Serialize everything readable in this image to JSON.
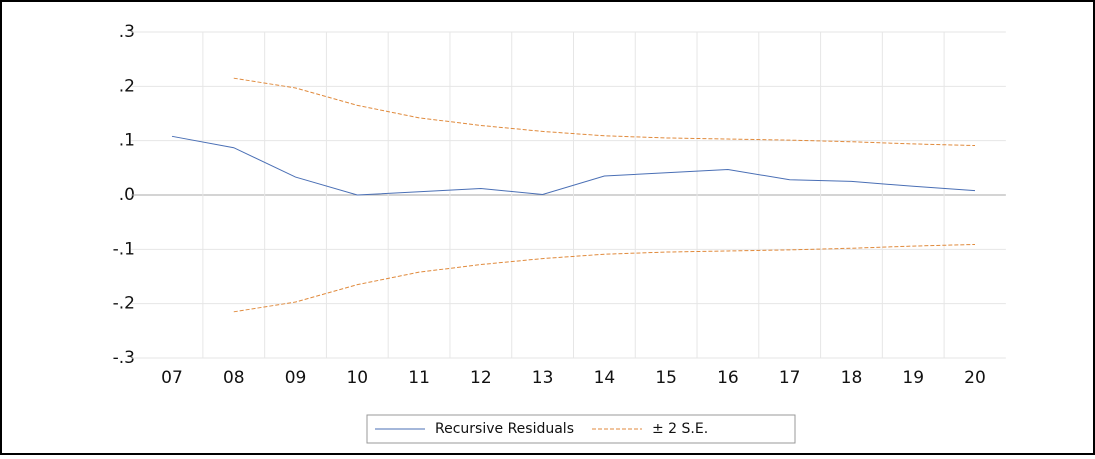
{
  "chart_data": {
    "type": "line",
    "categories": [
      "07",
      "08",
      "09",
      "10",
      "11",
      "12",
      "13",
      "14",
      "15",
      "16",
      "17",
      "18",
      "19",
      "20"
    ],
    "series": [
      {
        "name": "Recursive Residuals",
        "color": "#4a6fb5",
        "style": "solid",
        "values": [
          0.108,
          0.087,
          0.033,
          0.0,
          0.006,
          0.012,
          0.001,
          0.035,
          0.041,
          0.047,
          0.028,
          0.025,
          0.016,
          0.008
        ]
      },
      {
        "name": "± 2 S.E.",
        "color": "#e08a3c",
        "style": "dashed",
        "values": [
          null,
          0.215,
          0.197,
          0.165,
          0.142,
          0.128,
          0.117,
          0.109,
          0.105,
          0.103,
          0.101,
          0.098,
          0.094,
          0.091
        ],
        "lower": [
          null,
          -0.215,
          -0.197,
          -0.165,
          -0.142,
          -0.128,
          -0.117,
          -0.109,
          -0.105,
          -0.103,
          -0.101,
          -0.098,
          -0.094,
          -0.091
        ]
      }
    ],
    "ylim": [
      -0.3,
      0.3
    ],
    "yticks": [
      {
        "value": 0.3,
        "label": ".3"
      },
      {
        "value": 0.2,
        "label": ".2"
      },
      {
        "value": 0.1,
        "label": ".1"
      },
      {
        "value": 0,
        "label": ".0"
      },
      {
        "value": -0.1,
        "label": "-.1"
      },
      {
        "value": -0.2,
        "label": "-.2"
      },
      {
        "value": -0.3,
        "label": "-.3"
      }
    ],
    "grid": true,
    "legend": "bottom"
  }
}
